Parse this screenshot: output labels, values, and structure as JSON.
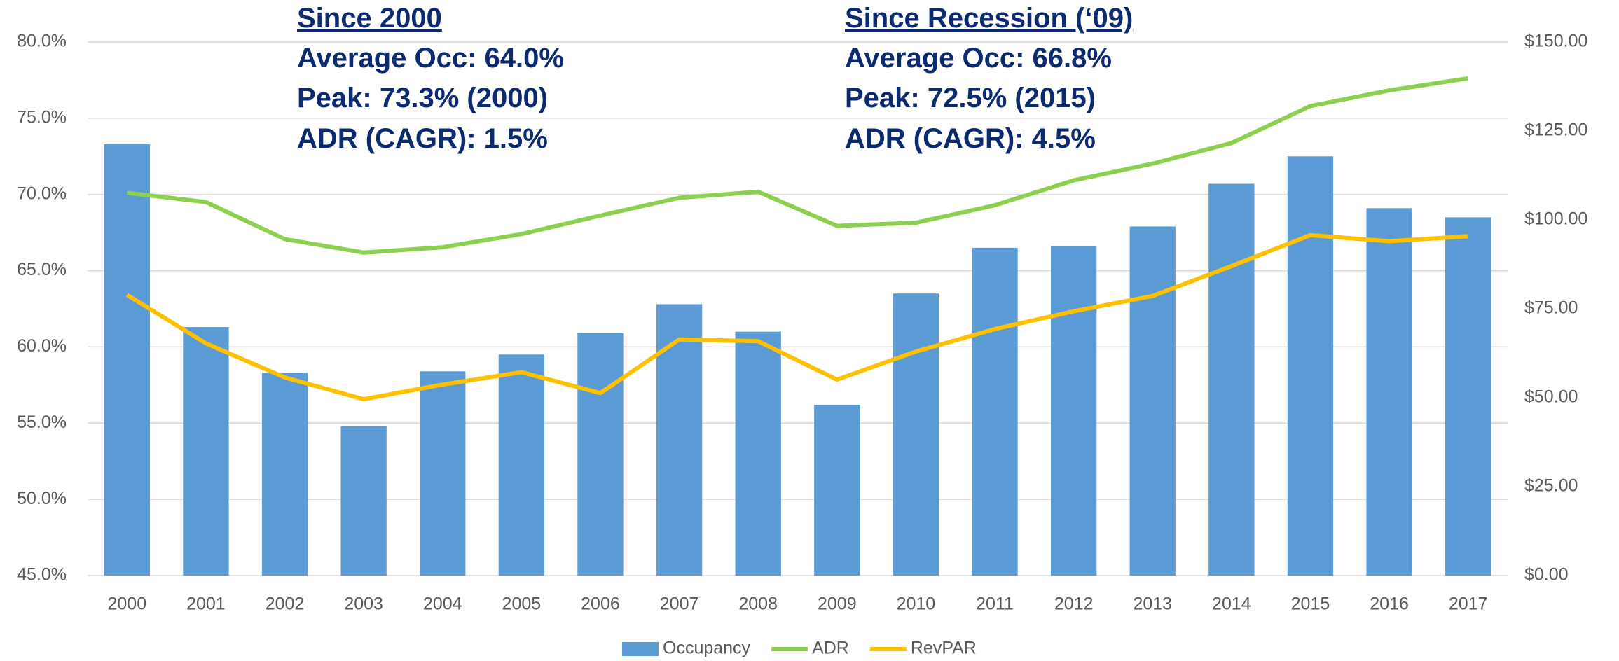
{
  "chart_data": {
    "type": "bar-line",
    "categories": [
      "2000",
      "2001",
      "2002",
      "2003",
      "2004",
      "2005",
      "2006",
      "2007",
      "2008",
      "2009",
      "2010",
      "2011",
      "2012",
      "2013",
      "2014",
      "2015",
      "2016",
      "2017"
    ],
    "series": [
      {
        "name": "Occupancy",
        "type": "bar",
        "color": "#5b9bd5",
        "values": [
          73.3,
          61.3,
          58.3,
          54.8,
          58.4,
          59.5,
          60.9,
          62.8,
          61.0,
          56.2,
          63.5,
          66.5,
          66.6,
          67.9,
          70.7,
          72.5,
          69.1,
          68.5
        ]
      },
      {
        "name": "ADR",
        "type": "line",
        "axis": "y2",
        "color": "#8dd04f",
        "values": [
          107.6,
          105.0,
          94.6,
          90.8,
          92.3,
          96.0,
          101.2,
          106.2,
          107.9,
          98.3,
          99.2,
          104.1,
          111.1,
          115.8,
          121.6,
          132.0,
          136.4,
          139.8
        ]
      },
      {
        "name": "RevPAR",
        "type": "line",
        "axis": "y2",
        "color": "#ffc000",
        "values": [
          78.9,
          65.3,
          55.7,
          49.6,
          53.7,
          57.2,
          51.3,
          66.4,
          65.9,
          55.1,
          63.0,
          69.3,
          74.3,
          78.6,
          87.0,
          95.7,
          94.0,
          95.4
        ]
      }
    ],
    "ylim": [
      45,
      80
    ],
    "yticks": [
      {
        "value": 45,
        "label": "45.0%"
      },
      {
        "value": 50,
        "label": "50.0%"
      },
      {
        "value": 55,
        "label": "55.0%"
      },
      {
        "value": 60,
        "label": "60.0%"
      },
      {
        "value": 65,
        "label": "65.0%"
      },
      {
        "value": 70,
        "label": "70.0%"
      },
      {
        "value": 75,
        "label": "75.0%"
      },
      {
        "value": 80,
        "label": "80.0%"
      }
    ],
    "y2lim": [
      0,
      150
    ],
    "y2ticks": [
      {
        "value": 0,
        "label": "$0.00"
      },
      {
        "value": 25,
        "label": "$25.00"
      },
      {
        "value": 50,
        "label": "$50.00"
      },
      {
        "value": 75,
        "label": "$75.00"
      },
      {
        "value": 100,
        "label": "$100.00"
      },
      {
        "value": 125,
        "label": "$125.00"
      },
      {
        "value": 150,
        "label": "$150.00"
      }
    ],
    "grid": true,
    "legend": "bottom",
    "annotations": [
      {
        "title": "Since 2000",
        "lines": [
          "Average Occ: 64.0%",
          "Peak: 73.3% (2000)",
          "ADR (CAGR): 1.5%"
        ]
      },
      {
        "title": "Since Recession (‘09)",
        "lines": [
          "Average Occ: 66.8%",
          "Peak: 72.5% (2015)",
          "ADR (CAGR): 4.5%"
        ]
      }
    ]
  }
}
